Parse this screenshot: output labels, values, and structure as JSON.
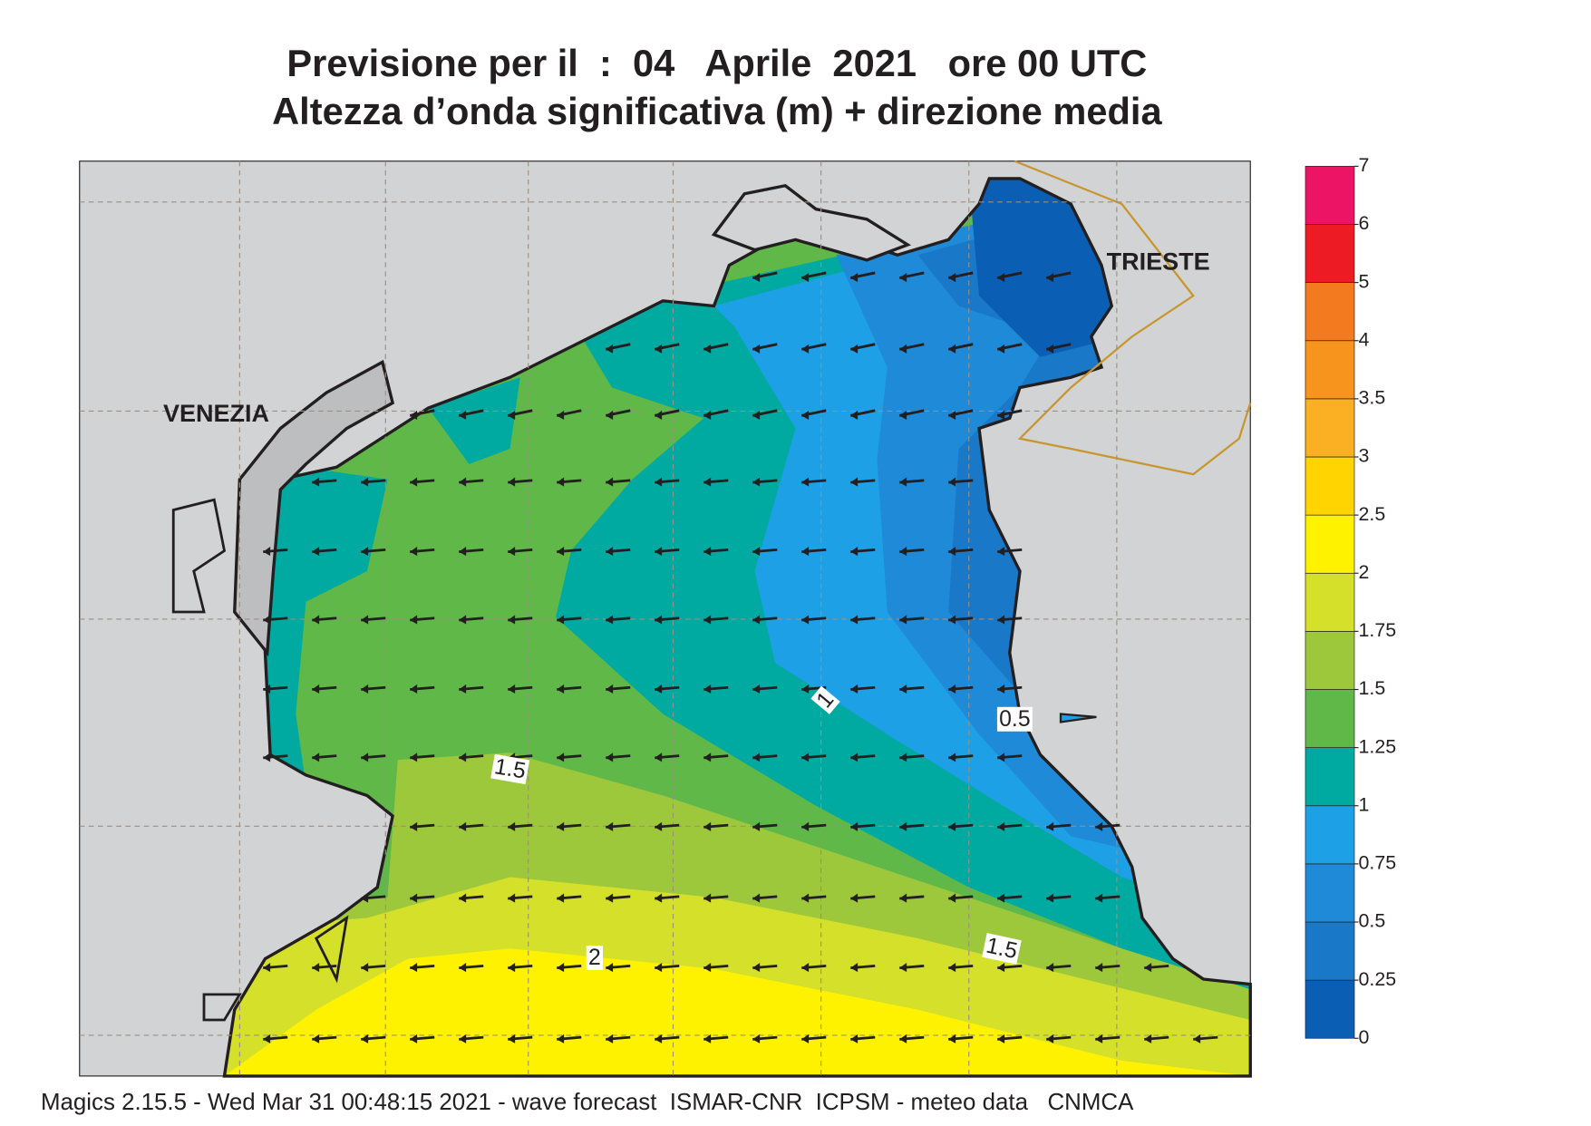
{
  "title_line1": "Previsione per il  :  04   Aprile  2021   ore 00 UTC",
  "title_line2": "Altezza d’onda significativa (m) + direzione media",
  "map": {
    "place_labels": [
      "VENEZIA",
      "TRIESTE"
    ],
    "contour_labels": [
      1,
      0.5,
      1.5,
      1.5,
      2
    ]
  },
  "colorbar": {
    "levels": [
      0,
      0.25,
      0.5,
      0.75,
      1,
      1.25,
      1.5,
      1.75,
      2,
      2.5,
      3,
      3.5,
      4,
      5,
      6,
      7
    ],
    "colors": [
      "#0a5fb4",
      "#1a78c8",
      "#1f8ad8",
      "#1ea0e6",
      "#00aaa0",
      "#60b848",
      "#9ec83c",
      "#d4e02a",
      "#fff200",
      "#ffd400",
      "#fbb024",
      "#f7941d",
      "#f47a20",
      "#ed1c24",
      "#ec1465"
    ]
  },
  "footer": "Magics 2.15.5 - Wed Mar 31 00:48:15 2021 - wave forecast  ISMAR-CNR  ICPSM - meteo data   CNMCA"
}
